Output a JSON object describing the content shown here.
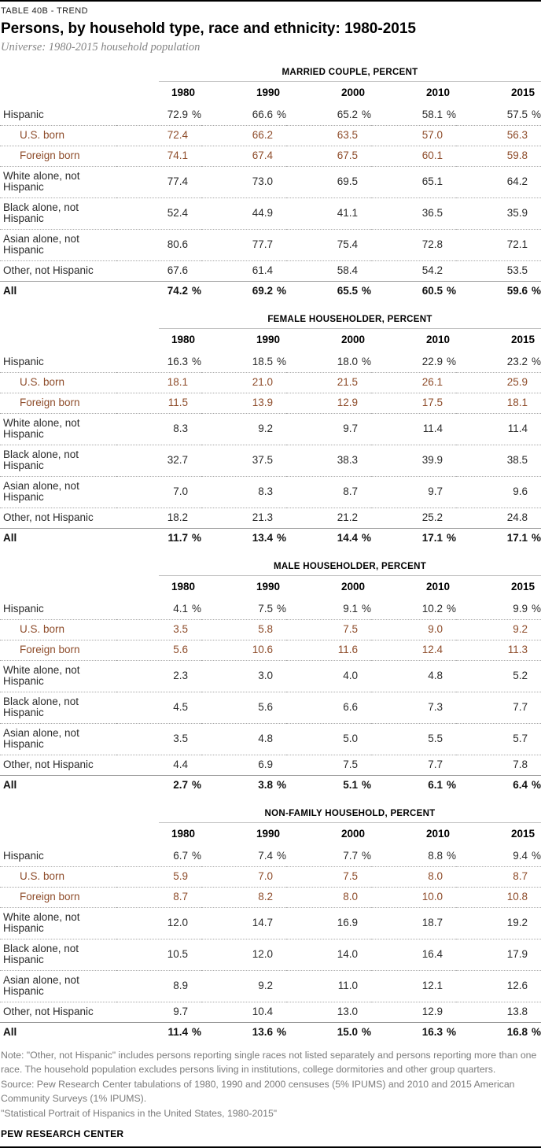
{
  "header": {
    "kicker": "TABLE 40B - TREND",
    "title": "Persons, by household type, race and ethnicity: 1980-2015",
    "universe": "Universe: 1980-2015 household population"
  },
  "footer": {
    "note": "Note: \"Other, not Hispanic\" includes persons reporting single races not listed separately and persons reporting more than one race. The household population excludes persons living in institutions, college dormitories and other group quarters.",
    "source": "Source: Pew Research Center tabulations of 1980, 1990 and 2000 censuses (5% IPUMS) and 2010 and 2015 American Community Surveys (1% IPUMS).",
    "citation": "\"Statistical Portrait of Hispanics in the United States, 1980-2015\"",
    "brand": "PEW RESEARCH CENTER"
  },
  "colors": {
    "subrow_text": "#8e4c2a",
    "rule_black": "#000000",
    "header_line_gray": "#c4c4c4",
    "total_line_gray": "#9b9b9b",
    "dotted_gray": "#a9a9a9",
    "note_gray": "#7b7b7b"
  },
  "years": [
    "1980",
    "1990",
    "2000",
    "2010",
    "2015"
  ],
  "chart_data": [
    {
      "type": "table",
      "title": "MARRIED COUPLE, PERCENT",
      "columns": [
        "1980",
        "1990",
        "2000",
        "2010",
        "2015"
      ],
      "rows": [
        {
          "label": "Hispanic",
          "indent": false,
          "pct": true,
          "total": false,
          "values": [
            "72.9",
            "66.6",
            "65.2",
            "58.1",
            "57.5"
          ]
        },
        {
          "label": "U.S. born",
          "indent": true,
          "pct": false,
          "total": false,
          "values": [
            "72.4",
            "66.2",
            "63.5",
            "57.0",
            "56.3"
          ]
        },
        {
          "label": "Foreign born",
          "indent": true,
          "pct": false,
          "total": false,
          "values": [
            "74.1",
            "67.4",
            "67.5",
            "60.1",
            "59.8"
          ]
        },
        {
          "label": "White alone, not Hispanic",
          "indent": false,
          "pct": false,
          "total": false,
          "values": [
            "77.4",
            "73.0",
            "69.5",
            "65.1",
            "64.2"
          ]
        },
        {
          "label": "Black alone, not Hispanic",
          "indent": false,
          "pct": false,
          "total": false,
          "values": [
            "52.4",
            "44.9",
            "41.1",
            "36.5",
            "35.9"
          ]
        },
        {
          "label": "Asian alone, not Hispanic",
          "indent": false,
          "pct": false,
          "total": false,
          "values": [
            "80.6",
            "77.7",
            "75.4",
            "72.8",
            "72.1"
          ]
        },
        {
          "label": "Other, not Hispanic",
          "indent": false,
          "pct": false,
          "total": false,
          "values": [
            "67.6",
            "61.4",
            "58.4",
            "54.2",
            "53.5"
          ]
        },
        {
          "label": "All",
          "indent": false,
          "pct": true,
          "total": true,
          "values": [
            "74.2",
            "69.2",
            "65.5",
            "60.5",
            "59.6"
          ]
        }
      ]
    },
    {
      "type": "table",
      "title": "FEMALE HOUSEHOLDER, PERCENT",
      "columns": [
        "1980",
        "1990",
        "2000",
        "2010",
        "2015"
      ],
      "rows": [
        {
          "label": "Hispanic",
          "indent": false,
          "pct": true,
          "total": false,
          "values": [
            "16.3",
            "18.5",
            "18.0",
            "22.9",
            "23.2"
          ]
        },
        {
          "label": "U.S. born",
          "indent": true,
          "pct": false,
          "total": false,
          "values": [
            "18.1",
            "21.0",
            "21.5",
            "26.1",
            "25.9"
          ]
        },
        {
          "label": "Foreign born",
          "indent": true,
          "pct": false,
          "total": false,
          "values": [
            "11.5",
            "13.9",
            "12.9",
            "17.5",
            "18.1"
          ]
        },
        {
          "label": "White alone, not Hispanic",
          "indent": false,
          "pct": false,
          "total": false,
          "values": [
            "8.3",
            "9.2",
            "9.7",
            "11.4",
            "11.4"
          ]
        },
        {
          "label": "Black alone, not Hispanic",
          "indent": false,
          "pct": false,
          "total": false,
          "values": [
            "32.7",
            "37.5",
            "38.3",
            "39.9",
            "38.5"
          ]
        },
        {
          "label": "Asian alone, not Hispanic",
          "indent": false,
          "pct": false,
          "total": false,
          "values": [
            "7.0",
            "8.3",
            "8.7",
            "9.7",
            "9.6"
          ]
        },
        {
          "label": "Other, not Hispanic",
          "indent": false,
          "pct": false,
          "total": false,
          "values": [
            "18.2",
            "21.3",
            "21.2",
            "25.2",
            "24.8"
          ]
        },
        {
          "label": "All",
          "indent": false,
          "pct": true,
          "total": true,
          "values": [
            "11.7",
            "13.4",
            "14.4",
            "17.1",
            "17.1"
          ]
        }
      ]
    },
    {
      "type": "table",
      "title": "MALE HOUSEHOLDER, PERCENT",
      "columns": [
        "1980",
        "1990",
        "2000",
        "2010",
        "2015"
      ],
      "rows": [
        {
          "label": "Hispanic",
          "indent": false,
          "pct": true,
          "total": false,
          "values": [
            "4.1",
            "7.5",
            "9.1",
            "10.2",
            "9.9"
          ]
        },
        {
          "label": "U.S. born",
          "indent": true,
          "pct": false,
          "total": false,
          "values": [
            "3.5",
            "5.8",
            "7.5",
            "9.0",
            "9.2"
          ]
        },
        {
          "label": "Foreign born",
          "indent": true,
          "pct": false,
          "total": false,
          "values": [
            "5.6",
            "10.6",
            "11.6",
            "12.4",
            "11.3"
          ]
        },
        {
          "label": "White alone, not Hispanic",
          "indent": false,
          "pct": false,
          "total": false,
          "values": [
            "2.3",
            "3.0",
            "4.0",
            "4.8",
            "5.2"
          ]
        },
        {
          "label": "Black alone, not Hispanic",
          "indent": false,
          "pct": false,
          "total": false,
          "values": [
            "4.5",
            "5.6",
            "6.6",
            "7.3",
            "7.7"
          ]
        },
        {
          "label": "Asian alone, not Hispanic",
          "indent": false,
          "pct": false,
          "total": false,
          "values": [
            "3.5",
            "4.8",
            "5.0",
            "5.5",
            "5.7"
          ]
        },
        {
          "label": "Other, not Hispanic",
          "indent": false,
          "pct": false,
          "total": false,
          "values": [
            "4.4",
            "6.9",
            "7.5",
            "7.7",
            "7.8"
          ]
        },
        {
          "label": "All",
          "indent": false,
          "pct": true,
          "total": true,
          "values": [
            "2.7",
            "3.8",
            "5.1",
            "6.1",
            "6.4"
          ]
        }
      ]
    },
    {
      "type": "table",
      "title": "NON-FAMILY HOUSEHOLD, PERCENT",
      "columns": [
        "1980",
        "1990",
        "2000",
        "2010",
        "2015"
      ],
      "rows": [
        {
          "label": "Hispanic",
          "indent": false,
          "pct": true,
          "total": false,
          "values": [
            "6.7",
            "7.4",
            "7.7",
            "8.8",
            "9.4"
          ]
        },
        {
          "label": "U.S. born",
          "indent": true,
          "pct": false,
          "total": false,
          "values": [
            "5.9",
            "7.0",
            "7.5",
            "8.0",
            "8.7"
          ]
        },
        {
          "label": "Foreign born",
          "indent": true,
          "pct": false,
          "total": false,
          "values": [
            "8.7",
            "8.2",
            "8.0",
            "10.0",
            "10.8"
          ]
        },
        {
          "label": "White alone, not Hispanic",
          "indent": false,
          "pct": false,
          "total": false,
          "values": [
            "12.0",
            "14.7",
            "16.9",
            "18.7",
            "19.2"
          ]
        },
        {
          "label": "Black alone, not Hispanic",
          "indent": false,
          "pct": false,
          "total": false,
          "values": [
            "10.5",
            "12.0",
            "14.0",
            "16.4",
            "17.9"
          ]
        },
        {
          "label": "Asian alone, not Hispanic",
          "indent": false,
          "pct": false,
          "total": false,
          "values": [
            "8.9",
            "9.2",
            "11.0",
            "12.1",
            "12.6"
          ]
        },
        {
          "label": "Other, not Hispanic",
          "indent": false,
          "pct": false,
          "total": false,
          "values": [
            "9.7",
            "10.4",
            "13.0",
            "12.9",
            "13.8"
          ]
        },
        {
          "label": "All",
          "indent": false,
          "pct": true,
          "total": true,
          "values": [
            "11.4",
            "13.6",
            "15.0",
            "16.3",
            "16.8"
          ]
        }
      ]
    }
  ]
}
